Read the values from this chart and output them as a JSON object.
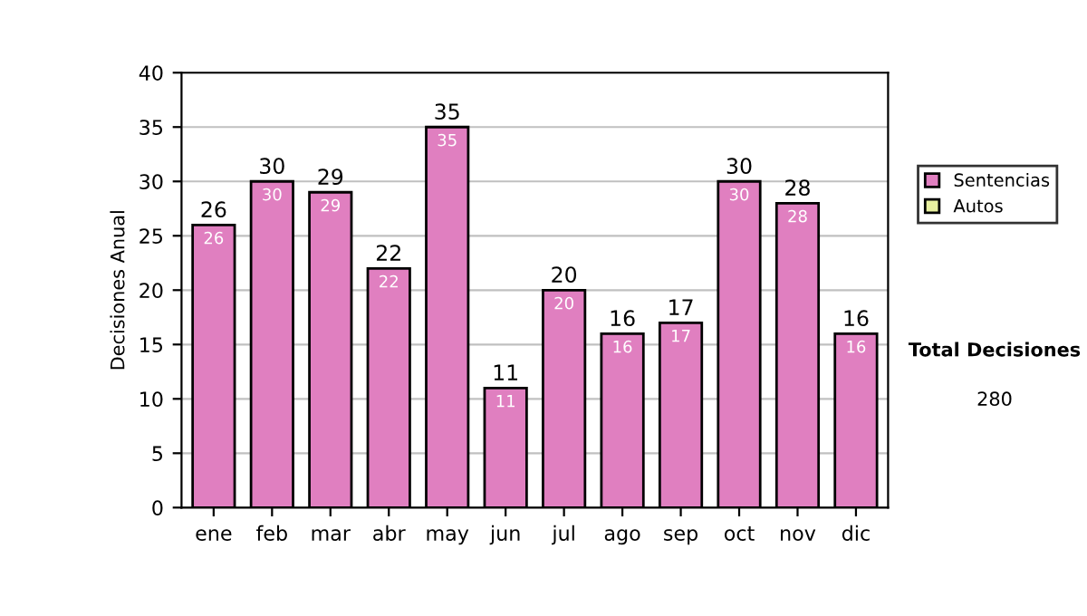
{
  "chart_data": {
    "type": "bar",
    "ylabel": "Decisiones Anual",
    "categories": [
      "ene",
      "feb",
      "mar",
      "abr",
      "may",
      "jun",
      "jul",
      "ago",
      "sep",
      "oct",
      "nov",
      "dic"
    ],
    "series": [
      {
        "name": "Sentencias",
        "color": "#e07fc0",
        "values": [
          26,
          30,
          29,
          22,
          35,
          11,
          20,
          16,
          17,
          30,
          28,
          16
        ],
        "value_labels": [
          "26",
          "30",
          "29",
          "22",
          "35",
          "11",
          "20",
          "16",
          "17",
          "30",
          "28",
          "16"
        ]
      },
      {
        "name": "Autos",
        "color": "#e8f0a0",
        "values": [
          0,
          0,
          0,
          0,
          0,
          0,
          0,
          0,
          0,
          0,
          0,
          0
        ]
      }
    ],
    "stacked": true,
    "totals": [
      "26",
      "30",
      "29",
      "22",
      "35",
      "11",
      "20",
      "16",
      "17",
      "30",
      "28",
      "16"
    ],
    "ylim": [
      0,
      40
    ],
    "yticks": [
      0,
      5,
      10,
      15,
      20,
      25,
      30,
      35,
      40
    ],
    "grid": "y",
    "legend": "right",
    "annotations": [
      "Total Decisiones",
      "280"
    ]
  }
}
